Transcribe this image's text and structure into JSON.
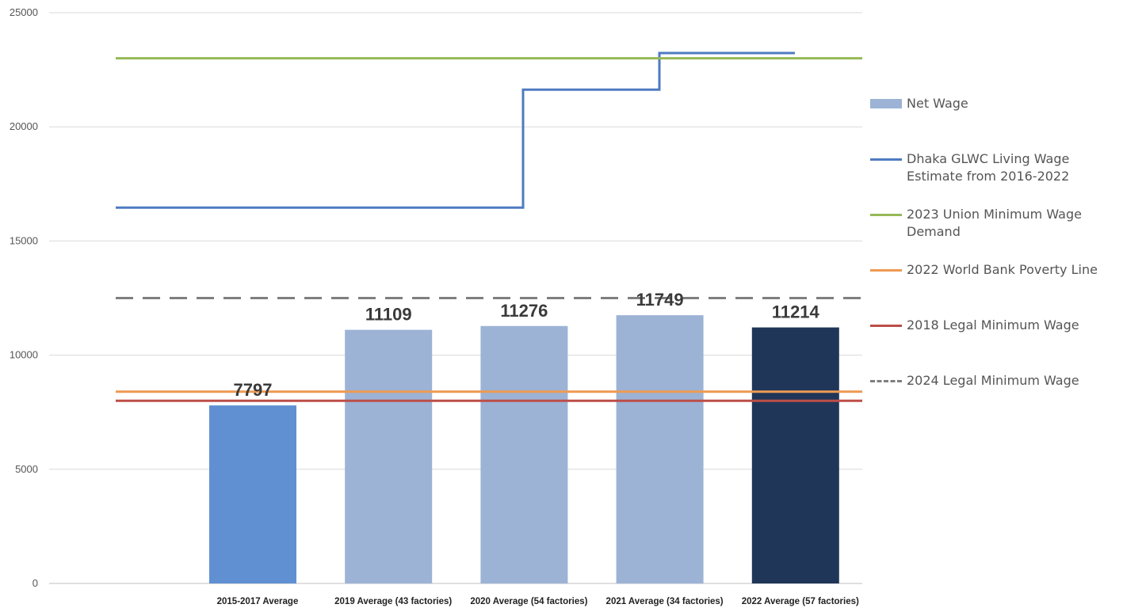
{
  "chart_data": {
    "type": "bar",
    "categories": [
      "2015-2017 Average",
      "2019 Average (43 factories)",
      "2020 Average (54 factories)",
      "2021 Average (34 factories)",
      "2022 Average (57 factories)"
    ],
    "ylim": [
      0,
      25000
    ],
    "yticks": [
      "0",
      "5000",
      "10000",
      "15000",
      "20000",
      "25000"
    ],
    "grid": true,
    "legend_position": "right",
    "bars": {
      "name": "Net Wage",
      "values": [
        7797,
        11109,
        11276,
        11749,
        11214
      ],
      "labels": [
        "7797",
        "11109",
        "11276",
        "11749",
        "11214"
      ],
      "colors": [
        "#6090d2",
        "#9cb3d6",
        "#9cb3d6",
        "#9cb3d6",
        "#203659"
      ],
      "legend_color": "#9cb3d6"
    },
    "lines": [
      {
        "name": "Dhaka GLWC Living Wage Estimate from 2016-2022",
        "color": "#4e7bc0",
        "style": "step",
        "values": [
          16460,
          16460,
          16460,
          21630,
          23230
        ]
      },
      {
        "name": "2023 Union Minimum Wage Demand",
        "color": "#96b957",
        "style": "solid",
        "value": 23000
      },
      {
        "name": "2022 World Bank Poverty Line",
        "color": "#ee9a52",
        "style": "solid",
        "value": 8400
      },
      {
        "name": "2018 Legal Minimum Wage",
        "color": "#bc4e48",
        "style": "solid",
        "value": 8000
      },
      {
        "name": "2024 Legal Minimum Wage",
        "color": "#7f7f7f",
        "style": "dashed",
        "value": 12500
      }
    ]
  }
}
